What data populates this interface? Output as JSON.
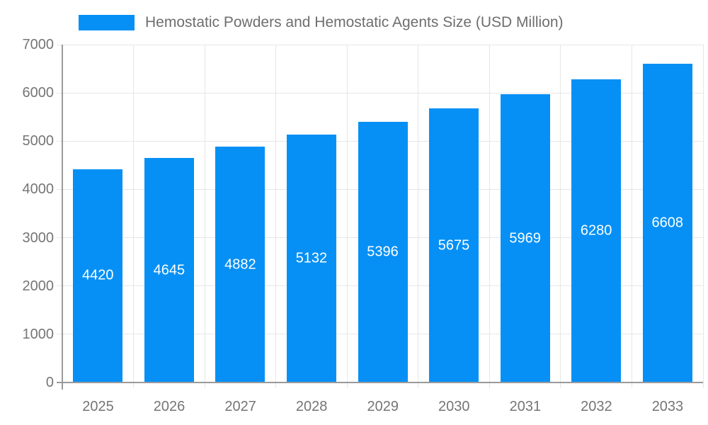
{
  "chart_data": {
    "type": "bar",
    "title": "Hemostatic Powders and Hemostatic Agents Size (USD Million)",
    "categories": [
      "2025",
      "2026",
      "2027",
      "2028",
      "2029",
      "2030",
      "2031",
      "2032",
      "2033"
    ],
    "series": [
      {
        "name": "Hemostatic Powders and Hemostatic Agents Size (USD Million)",
        "values": [
          4420,
          4645,
          4882,
          5132,
          5396,
          5675,
          5969,
          6280,
          6608
        ]
      }
    ],
    "xlabel": "",
    "ylabel": "",
    "ylim": [
      0,
      7000
    ],
    "ytick_step": 1000,
    "ytick_labels": [
      "0",
      "1000",
      "2000",
      "3000",
      "4000",
      "5000",
      "6000",
      "7000"
    ],
    "legend_position": "top",
    "grid": "both",
    "bar_labels_inside": true,
    "colors": {
      "bar": "#0690F5",
      "bar_label": "#ffffff",
      "axis_text": "#757575",
      "title_text": "#6e6e6e",
      "gridline": "#e6e6e6",
      "axis_line": "#9a9a9a",
      "background": "#ffffff"
    }
  }
}
